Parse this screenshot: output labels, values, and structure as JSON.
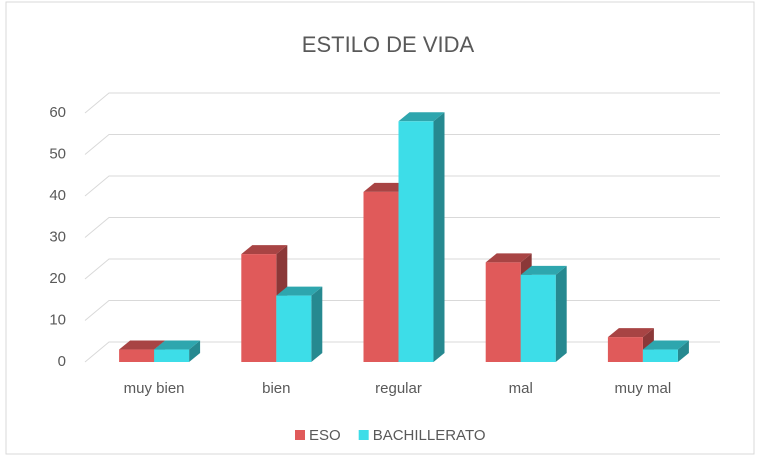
{
  "chart_data": {
    "type": "bar",
    "title": "ESTILO DE VIDA",
    "categories": [
      "muy bien",
      "bien",
      "regular",
      "mal",
      "muy mal"
    ],
    "series": [
      {
        "name": "ESO",
        "color": "#e05a5a",
        "values": [
          3,
          26,
          41,
          24,
          6
        ]
      },
      {
        "name": "BACHILLERATO",
        "color": "#3ddde8",
        "values": [
          3,
          16,
          58,
          21,
          3
        ]
      }
    ],
    "ylim": [
      0,
      60
    ],
    "yticks": [
      0,
      10,
      20,
      30,
      40,
      50,
      60
    ],
    "grid": true,
    "legend": "bottom"
  }
}
